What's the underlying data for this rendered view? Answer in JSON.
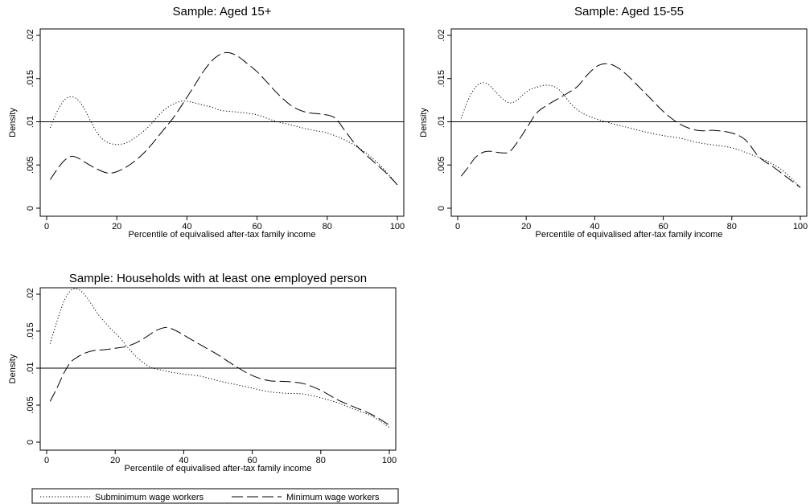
{
  "figure": {
    "legend": {
      "placement": "bottom",
      "items": [
        {
          "label": "Subminimum wage workers",
          "style": "dotted"
        },
        {
          "label": "Minimum wage workers",
          "style": "dashed"
        }
      ]
    }
  },
  "chart_data": [
    {
      "type": "line",
      "title": "Sample: Aged 15+",
      "xlabel": "Percentile of equivalised after-tax family income",
      "ylabel": "Density",
      "xlim": [
        0,
        100
      ],
      "ylim": [
        0,
        0.02
      ],
      "xticks": [
        "0",
        "20",
        "40",
        "60",
        "80",
        "100"
      ],
      "yticks": [
        "0",
        ".005",
        ".01",
        ".015",
        ".02"
      ],
      "reference_line_y": 0.01,
      "grid": false,
      "series": [
        {
          "name": "Subminimum wage workers",
          "style": "dotted",
          "x": [
            1,
            3,
            5,
            7,
            9,
            11,
            13,
            15,
            17,
            19,
            21,
            23,
            25,
            27,
            29,
            31,
            33,
            35,
            37,
            39,
            41,
            43,
            45,
            47,
            50,
            55,
            60,
            65,
            70,
            75,
            80,
            85,
            90,
            95,
            100
          ],
          "y": [
            0.0093,
            0.0112,
            0.0125,
            0.0129,
            0.0125,
            0.0113,
            0.0097,
            0.0084,
            0.0077,
            0.0074,
            0.0074,
            0.0076,
            0.0081,
            0.0087,
            0.0094,
            0.0103,
            0.0112,
            0.0118,
            0.0122,
            0.0124,
            0.0123,
            0.0121,
            0.0119,
            0.0117,
            0.0113,
            0.0111,
            0.0108,
            0.0101,
            0.0096,
            0.0091,
            0.0087,
            0.0079,
            0.0067,
            0.005,
            0.0027
          ]
        },
        {
          "name": "Minimum wage workers",
          "style": "dashed",
          "x": [
            1,
            3,
            5,
            7,
            9,
            11,
            14,
            17,
            19,
            22,
            25,
            28,
            30,
            33,
            36,
            39,
            42,
            45,
            48,
            51,
            54,
            57,
            60,
            63,
            66,
            70,
            74,
            78,
            82,
            85,
            88,
            91,
            94,
            97,
            100
          ],
          "y": [
            0.0033,
            0.0045,
            0.0055,
            0.006,
            0.0058,
            0.0053,
            0.0046,
            0.0041,
            0.0041,
            0.0046,
            0.0054,
            0.0065,
            0.0074,
            0.0089,
            0.0104,
            0.0122,
            0.0141,
            0.016,
            0.0174,
            0.018,
            0.0177,
            0.0168,
            0.0158,
            0.0145,
            0.0132,
            0.0118,
            0.0111,
            0.0109,
            0.0105,
            0.009,
            0.0074,
            0.0062,
            0.0051,
            0.004,
            0.0027
          ]
        }
      ]
    },
    {
      "type": "line",
      "title": "Sample: Aged 15-55",
      "xlabel": "Percentile of equivalised after-tax family income",
      "ylabel": "Density",
      "xlim": [
        0,
        100
      ],
      "ylim": [
        0,
        0.02
      ],
      "xticks": [
        "0",
        "20",
        "40",
        "60",
        "80",
        "100"
      ],
      "yticks": [
        "0",
        ".005",
        ".01",
        ".015",
        ".02"
      ],
      "reference_line_y": 0.01,
      "grid": false,
      "series": [
        {
          "name": "Subminimum wage workers",
          "style": "dotted",
          "x": [
            1,
            3,
            5,
            7,
            9,
            11,
            13,
            15,
            17,
            19,
            21,
            23,
            25,
            27,
            29,
            31,
            33,
            36,
            40,
            45,
            50,
            55,
            60,
            65,
            70,
            75,
            80,
            85,
            90,
            95,
            100
          ],
          "y": [
            0.0104,
            0.0125,
            0.0139,
            0.0145,
            0.0143,
            0.0135,
            0.0127,
            0.0122,
            0.0124,
            0.0131,
            0.0137,
            0.014,
            0.0142,
            0.0142,
            0.0139,
            0.0131,
            0.0121,
            0.0111,
            0.0104,
            0.0098,
            0.0093,
            0.0088,
            0.0084,
            0.0081,
            0.0076,
            0.0073,
            0.007,
            0.0063,
            0.0055,
            0.0043,
            0.0024
          ]
        },
        {
          "name": "Minimum wage workers",
          "style": "dashed",
          "x": [
            1,
            3,
            5,
            7,
            9,
            11,
            13,
            15,
            17,
            20,
            23,
            26,
            29,
            32,
            35,
            38,
            41,
            44,
            47,
            50,
            53,
            56,
            60,
            65,
            70,
            75,
            80,
            84,
            88,
            92,
            96,
            100
          ],
          "y": [
            0.0037,
            0.0047,
            0.0058,
            0.0064,
            0.0066,
            0.0065,
            0.0064,
            0.0065,
            0.0074,
            0.0092,
            0.011,
            0.0119,
            0.0126,
            0.0133,
            0.0141,
            0.0155,
            0.0165,
            0.0167,
            0.0162,
            0.0152,
            0.014,
            0.0128,
            0.0112,
            0.0097,
            0.009,
            0.009,
            0.0087,
            0.0079,
            0.0059,
            0.0048,
            0.0036,
            0.0024
          ]
        }
      ]
    },
    {
      "type": "line",
      "title": "Sample: Households with at least one employed person",
      "xlabel": "Percentile of equivalised after-tax family income",
      "ylabel": "Density",
      "xlim": [
        0,
        100
      ],
      "ylim": [
        0,
        0.02
      ],
      "xticks": [
        "0",
        "20",
        "40",
        "60",
        "80",
        "100"
      ],
      "yticks": [
        "0",
        ".005",
        ".01",
        ".015",
        ".02"
      ],
      "reference_line_y": 0.01,
      "grid": false,
      "series": [
        {
          "name": "Subminimum wage workers",
          "style": "dotted",
          "x": [
            1,
            3,
            5,
            7,
            9,
            11,
            13,
            15,
            17,
            19,
            21,
            23,
            25,
            27,
            29,
            31,
            34,
            37,
            40,
            45,
            50,
            55,
            60,
            65,
            70,
            75,
            80,
            85,
            90,
            95,
            100
          ],
          "y": [
            0.0133,
            0.0163,
            0.019,
            0.0205,
            0.0207,
            0.02,
            0.0187,
            0.0173,
            0.0162,
            0.0152,
            0.0143,
            0.0132,
            0.0121,
            0.0112,
            0.0105,
            0.01,
            0.0097,
            0.0094,
            0.0092,
            0.0089,
            0.0083,
            0.0078,
            0.0073,
            0.0068,
            0.0066,
            0.0065,
            0.006,
            0.0053,
            0.0044,
            0.0035,
            0.002
          ]
        },
        {
          "name": "Minimum wage workers",
          "style": "dashed",
          "x": [
            1,
            3,
            5,
            7,
            9,
            11,
            14,
            17,
            20,
            23,
            26,
            29,
            32,
            35,
            38,
            41,
            44,
            47,
            50,
            55,
            60,
            65,
            70,
            75,
            80,
            85,
            90,
            95,
            100
          ],
          "y": [
            0.0055,
            0.0073,
            0.0093,
            0.0108,
            0.0115,
            0.012,
            0.0124,
            0.0125,
            0.0127,
            0.0129,
            0.0134,
            0.0142,
            0.0151,
            0.0155,
            0.015,
            0.0142,
            0.0134,
            0.0126,
            0.0118,
            0.0103,
            0.009,
            0.0083,
            0.0082,
            0.0079,
            0.007,
            0.0057,
            0.0047,
            0.0037,
            0.0023
          ]
        }
      ]
    }
  ]
}
